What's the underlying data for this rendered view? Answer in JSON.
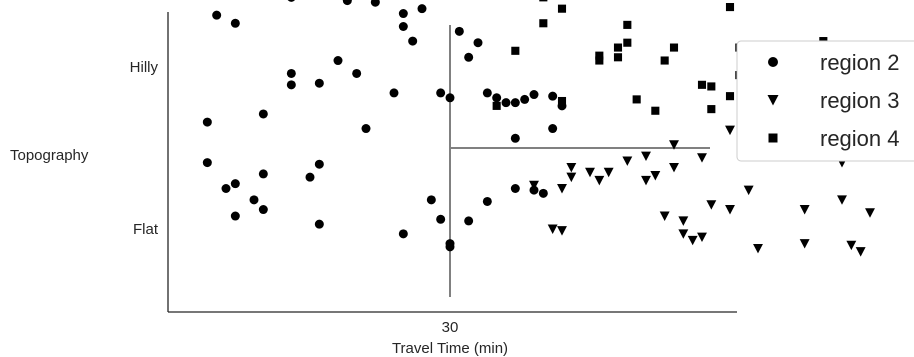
{
  "chart_data": {
    "type": "scatter",
    "title": "",
    "xlabel": "Travel Time (min)",
    "ylabel": "Topography",
    "x_ticks": [
      30
    ],
    "y_categories": [
      "Flat",
      "Hilly"
    ],
    "xlim": [
      0,
      82
    ],
    "ylim": [
      -0.45,
      1.55
    ],
    "grid": false,
    "legend_position": "top-right",
    "reference_lines": {
      "vertical_x": 30,
      "horizontal_y": 0.5
    },
    "series": [
      {
        "name": "region 2",
        "marker": "circle",
        "color": "#000000",
        "points": [
          [
            37,
            1.48
          ],
          [
            13,
            1.43
          ],
          [
            19,
            1.41
          ],
          [
            22,
            1.4
          ],
          [
            27,
            1.36
          ],
          [
            25,
            1.33
          ],
          [
            5,
            1.32
          ],
          [
            7,
            1.27
          ],
          [
            25,
            1.25
          ],
          [
            31,
            1.22
          ],
          [
            26,
            1.16
          ],
          [
            33,
            1.15
          ],
          [
            32,
            1.06
          ],
          [
            18,
            1.04
          ],
          [
            13,
            0.96
          ],
          [
            20,
            0.96
          ],
          [
            13,
            0.89
          ],
          [
            16,
            0.9
          ],
          [
            24,
            0.84
          ],
          [
            29,
            0.84
          ],
          [
            34,
            0.84
          ],
          [
            35,
            0.81
          ],
          [
            39,
            0.83
          ],
          [
            30,
            0.81
          ],
          [
            41,
            0.82
          ],
          [
            38,
            0.8
          ],
          [
            36,
            0.78
          ],
          [
            37,
            0.78
          ],
          [
            42,
            0.76
          ],
          [
            10,
            0.71
          ],
          [
            4,
            0.66
          ],
          [
            21,
            0.62
          ],
          [
            41,
            0.62
          ],
          [
            37,
            0.56
          ],
          [
            4,
            0.41
          ],
          [
            16,
            0.4
          ],
          [
            10,
            0.34
          ],
          [
            15,
            0.32
          ],
          [
            7,
            0.28
          ],
          [
            6,
            0.25
          ],
          [
            37,
            0.25
          ],
          [
            39,
            0.24
          ],
          [
            40,
            0.22
          ],
          [
            9,
            0.18
          ],
          [
            28,
            0.18
          ],
          [
            34,
            0.17
          ],
          [
            10,
            0.12
          ],
          [
            7,
            0.08
          ],
          [
            29,
            0.06
          ],
          [
            32,
            0.05
          ],
          [
            16,
            0.03
          ],
          [
            25,
            -0.03
          ],
          [
            30,
            -0.09
          ],
          [
            30,
            -0.11
          ]
        ]
      },
      {
        "name": "region 3",
        "marker": "triangle-down",
        "color": "#000000",
        "points": [
          [
            60,
            0.61
          ],
          [
            78,
            0.59
          ],
          [
            62,
            0.53
          ],
          [
            54,
            0.52
          ],
          [
            57,
            0.44
          ],
          [
            51,
            0.45
          ],
          [
            49,
            0.42
          ],
          [
            54,
            0.38
          ],
          [
            72,
            0.41
          ],
          [
            83,
            0.41
          ],
          [
            43,
            0.38
          ],
          [
            45,
            0.35
          ],
          [
            47,
            0.35
          ],
          [
            52,
            0.33
          ],
          [
            43,
            0.32
          ],
          [
            46,
            0.3
          ],
          [
            51,
            0.3
          ],
          [
            39,
            0.27
          ],
          [
            42,
            0.25
          ],
          [
            62,
            0.24
          ],
          [
            72,
            0.18
          ],
          [
            58,
            0.15
          ],
          [
            60,
            0.12
          ],
          [
            68,
            0.12
          ],
          [
            53,
            0.08
          ],
          [
            75,
            0.1
          ],
          [
            55,
            0.05
          ],
          [
            41,
            0.0
          ],
          [
            42,
            -0.01
          ],
          [
            55,
            -0.03
          ],
          [
            57,
            -0.05
          ],
          [
            56,
            -0.07
          ],
          [
            73,
            -0.1
          ],
          [
            74,
            -0.14
          ],
          [
            63,
            -0.12
          ],
          [
            68,
            -0.09
          ]
        ]
      },
      {
        "name": "region 4",
        "marker": "square",
        "color": "#000000",
        "points": [
          [
            40,
            1.43
          ],
          [
            42,
            1.36
          ],
          [
            60,
            1.37
          ],
          [
            40,
            1.27
          ],
          [
            49,
            1.26
          ],
          [
            49,
            1.15
          ],
          [
            54,
            1.12
          ],
          [
            37,
            1.1
          ],
          [
            48,
            1.12
          ],
          [
            46,
            1.07
          ],
          [
            48,
            1.06
          ],
          [
            46,
            1.04
          ],
          [
            53,
            1.04
          ],
          [
            70,
            1.16
          ],
          [
            61,
            1.12
          ],
          [
            61,
            0.95
          ],
          [
            57,
            0.89
          ],
          [
            65,
            0.88
          ],
          [
            58,
            0.88
          ],
          [
            64,
            0.86
          ],
          [
            60,
            0.82
          ],
          [
            50,
            0.8
          ],
          [
            42,
            0.79
          ],
          [
            58,
            0.74
          ],
          [
            35,
            0.76
          ],
          [
            52,
            0.73
          ]
        ]
      }
    ]
  }
}
